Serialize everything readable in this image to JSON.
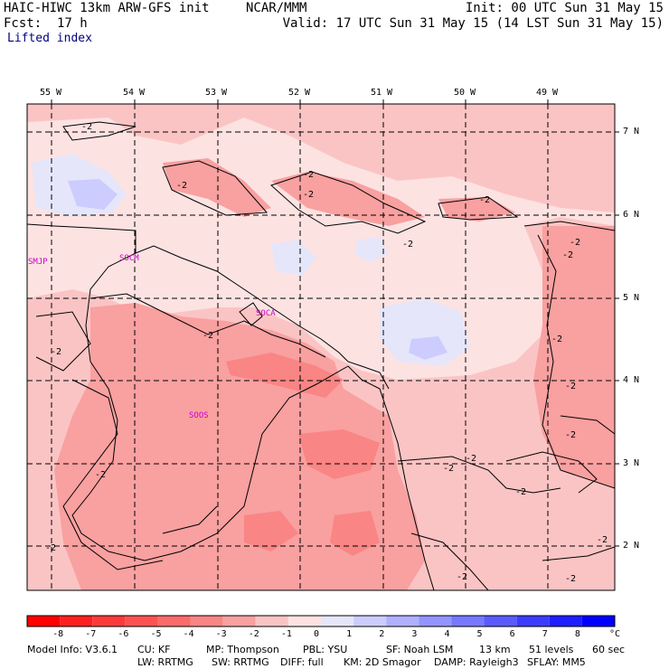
{
  "header": {
    "model": "HAIC-HIWC 13km ARW-GFS init",
    "org": "NCAR/MMM",
    "init": "Init: 00 UTC Sun 31 May 15",
    "fcst": "Fcst:  17 h",
    "valid": "Valid: 17 UTC Sun 31 May 15 (14 LST Sun 31 May 15)",
    "field": "Lifted index"
  },
  "map": {
    "lon_labels": [
      "55 W",
      "54 W",
      "53 W",
      "52 W",
      "51 W",
      "50 W",
      "49 W"
    ],
    "lat_labels": [
      "7 N",
      "6 N",
      "5 N",
      "4 N",
      "3 N",
      "2 N"
    ],
    "stations": [
      "SMJP",
      "SOCM",
      "SOCA",
      "SOOS"
    ],
    "contour_labels": [
      "-2",
      "-2",
      "-2",
      "-2",
      "-2",
      "-2",
      "-2",
      "-2",
      "-2",
      "-2",
      "-2",
      "-2",
      "-2",
      "-2",
      "-2",
      "-2",
      "-2",
      "-2",
      "-2",
      "-2",
      "-2"
    ]
  },
  "colorbar": {
    "ticks": [
      "-8",
      "-7",
      "-6",
      "-5",
      "-4",
      "-3",
      "-2",
      "-1",
      "0",
      "1",
      "2",
      "3",
      "4",
      "5",
      "6",
      "7",
      "8"
    ],
    "unit": "°C",
    "colors": [
      "#ff0000",
      "#fe2020",
      "#fd3a3a",
      "#fc5252",
      "#fb6b6b",
      "#f98585",
      "#f9a0a0",
      "#fbc4c4",
      "#fde2e2",
      "#e6e6fa",
      "#ccccff",
      "#b0b0ff",
      "#9494ff",
      "#7878ff",
      "#5a5aff",
      "#3c3cff",
      "#1e1eff",
      "#0000ff"
    ]
  },
  "footer": {
    "line1": [
      "Model Info: V3.6.1",
      "CU: KF",
      "MP: Thompson",
      "PBL: YSU",
      "SF: Noah LSM",
      "13 km",
      "51 levels",
      "60 sec"
    ],
    "line2": [
      "LW: RRTMG",
      "SW: RRTMG",
      "DIFF: full",
      "KM: 2D Smagor",
      "DAMP: Rayleigh3",
      "SFLAY: MM5"
    ]
  }
}
